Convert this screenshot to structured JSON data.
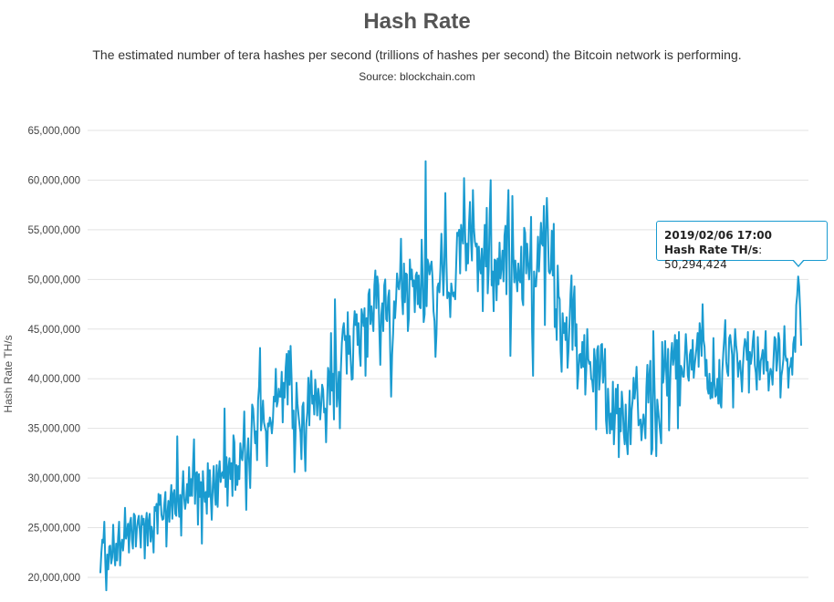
{
  "chart_data": {
    "type": "line",
    "title": "Hash Rate",
    "subtitle": "The estimated number of tera hashes per second (trillions of hashes per second) the Bitcoin network is performing.",
    "source": "Source: blockchain.com",
    "xlabel": "",
    "ylabel": "Hash Rate TH/s",
    "ylim": [
      18000000,
      65000000
    ],
    "yticks": [
      20000000,
      25000000,
      30000000,
      35000000,
      40000000,
      45000000,
      50000000,
      55000000,
      60000000,
      65000000
    ],
    "ytick_labels": [
      "20,000,000",
      "25,000,000",
      "30,000,000",
      "35,000,000",
      "40,000,000",
      "45,000,000",
      "50,000,000",
      "55,000,000",
      "60,000,000",
      "65,000,000"
    ],
    "grid": true,
    "series": [
      {
        "color": "#1a9bd0",
        "values": [
          20500000,
          22500000,
          23800000,
          23500000,
          25600000,
          21500000,
          18700000,
          22300000,
          20800000,
          23100000,
          23200000,
          21400000,
          22000000,
          25300000,
          22600000,
          21200000,
          23400000,
          21700000,
          24000000,
          25600000,
          21200000,
          23300000,
          23800000,
          22700000,
          23900000,
          27000000,
          23900000,
          24500000,
          25400000,
          22500000,
          25500000,
          26000000,
          23800000,
          22900000,
          26400000,
          26200000,
          23100000,
          24800000,
          25700000,
          26200000,
          24700000,
          23000000,
          26200000,
          25300000,
          25900000,
          21900000,
          25400000,
          26500000,
          23200000,
          25700000,
          26400000,
          23600000,
          25100000,
          24400000,
          22500000,
          27100000,
          26700000,
          27400000,
          24400000,
          28400000,
          27300000,
          28300000,
          26300000,
          25800000,
          25900000,
          27500000,
          28600000,
          23100000,
          26400000,
          27700000,
          25600000,
          27800000,
          29300000,
          25900000,
          28400000,
          28800000,
          26400000,
          26200000,
          34200000,
          27700000,
          26100000,
          28300000,
          24200000,
          28500000,
          30700000,
          28000000,
          26900000,
          27800000,
          29400000,
          27500000,
          31100000,
          28200000,
          29900000,
          28200000,
          31300000,
          33900000,
          27400000,
          30500000,
          30600000,
          25300000,
          30400000,
          28100000,
          29600000,
          23400000,
          30700000,
          28600000,
          27600000,
          28600000,
          26400000,
          31500000,
          28100000,
          30800000,
          28100000,
          25800000,
          29100000,
          31200000,
          28600000,
          27300000,
          31300000,
          27100000,
          30400000,
          31700000,
          29600000,
          30400000,
          30600000,
          30000000,
          37000000,
          29100000,
          32100000,
          27200000,
          31100000,
          32000000,
          29900000,
          31500000,
          28200000,
          34300000,
          33600000,
          28800000,
          31300000,
          29300000,
          31200000,
          29900000,
          33500000,
          32200000,
          31800000,
          33500000,
          36700000,
          31600000,
          26800000,
          32300000,
          34000000,
          31500000,
          29000000,
          33500000,
          37400000,
          37000000,
          35300000,
          33500000,
          34700000,
          31800000,
          37800000,
          39200000,
          43100000,
          34800000,
          36000000,
          37800000,
          35600000,
          35100000,
          34700000,
          31200000,
          35500000,
          35200000,
          36100000,
          35600000,
          34500000,
          35700000,
          38200000,
          37700000,
          41000000,
          37200000,
          37700000,
          39000000,
          38200000,
          38200000,
          40700000,
          35600000,
          39600000,
          38100000,
          41100000,
          42500000,
          37400000,
          42800000,
          39400000,
          43300000,
          40100000,
          35000000,
          36800000,
          30600000,
          34300000,
          39600000,
          37500000,
          36400000,
          35400000,
          34600000,
          31900000,
          37200000,
          37600000,
          33600000,
          30700000,
          35500000,
          36700000,
          40100000,
          35300000,
          39300000,
          40800000,
          37500000,
          38300000,
          36400000,
          39900000,
          38500000,
          36300000,
          39000000,
          38200000,
          35900000,
          37300000,
          39400000,
          38900000,
          36600000,
          37000000,
          33600000,
          37400000,
          41100000,
          40500000,
          37400000,
          44600000,
          38800000,
          40500000,
          35900000,
          48000000,
          42400000,
          37200000,
          38600000,
          40700000,
          35000000,
          40900000,
          43600000,
          45000000,
          45600000,
          43900000,
          44300000,
          40500000,
          46700000,
          42500000,
          44300000,
          41900000,
          39900000,
          40000000,
          45100000,
          46800000,
          45400000,
          46500000,
          43400000,
          45600000,
          42600000,
          41300000,
          47000000,
          46300000,
          45300000,
          47100000,
          40300000,
          46100000,
          42200000,
          48500000,
          49000000,
          45500000,
          47300000,
          46000000,
          44800000,
          49400000,
          50900000,
          47100000,
          50300000,
          49400000,
          45000000,
          41400000,
          46400000,
          47600000,
          44800000,
          49400000,
          50000000,
          46000000,
          45800000,
          48200000,
          48900000,
          43100000,
          38200000,
          42400000,
          44500000,
          47800000,
          46100000,
          47900000,
          50600000,
          49400000,
          49000000,
          50200000,
          54100000,
          48200000,
          46500000,
          51600000,
          47700000,
          50600000,
          50500000,
          44800000,
          46100000,
          52000000,
          50000000,
          51000000,
          49300000,
          49900000,
          46700000,
          50400000,
          50700000,
          47500000,
          50400000,
          47200000,
          47100000,
          54000000,
          50200000,
          45700000,
          46500000,
          61900000,
          47300000,
          52000000,
          51500000,
          50500000,
          51300000,
          51800000,
          50100000,
          46800000,
          45800000,
          42200000,
          44500000,
          49200000,
          49600000,
          48700000,
          51100000,
          54600000,
          51600000,
          48400000,
          51500000,
          58700000,
          52200000,
          48100000,
          48700000,
          48600000,
          46200000,
          49600000,
          48800000,
          48300000,
          48700000,
          48000000,
          51500000,
          54700000,
          54400000,
          55000000,
          50600000,
          55500000,
          54300000,
          53600000,
          60200000,
          55000000,
          50900000,
          53600000,
          51600000,
          55600000,
          57800000,
          54000000,
          51900000,
          59000000,
          55200000,
          53800000,
          53300000,
          53600000,
          48800000,
          53300000,
          51200000,
          50600000,
          53100000,
          46800000,
          52300000,
          55500000,
          51300000,
          57200000,
          48600000,
          51000000,
          56500000,
          60000000,
          49400000,
          50800000,
          46800000,
          52000000,
          51900000,
          47900000,
          52100000,
          49500000,
          53700000,
          50100000,
          51300000,
          52900000,
          49800000,
          54400000,
          55400000,
          48500000,
          55900000,
          59000000,
          51600000,
          42300000,
          47800000,
          58400000,
          52400000,
          49700000,
          51900000,
          50200000,
          48800000,
          51600000,
          50000000,
          49700000,
          53300000,
          48000000,
          47400000,
          55200000,
          54700000,
          50600000,
          53600000,
          51600000,
          50000000,
          51900000,
          56300000,
          44800000,
          40300000,
          50800000,
          49300000,
          49300000,
          51100000,
          54300000,
          50800000,
          53300000,
          55700000,
          53600000,
          53400000,
          57400000,
          45400000,
          54700000,
          58200000,
          55200000,
          50800000,
          50600000,
          51000000,
          54900000,
          50400000,
          55600000,
          45200000,
          47000000,
          43900000,
          51400000,
          48300000,
          48000000,
          42800000,
          40700000,
          46600000,
          44600000,
          45600000,
          43900000,
          46200000,
          41100000,
          42900000,
          45600000,
          48500000,
          50400000,
          42900000,
          47700000,
          49300000,
          43300000,
          45500000,
          39000000,
          40500000,
          42400000,
          42500000,
          41100000,
          43700000,
          41200000,
          44400000,
          38400000,
          40900000,
          45000000,
          42000000,
          41500000,
          41700000,
          40000000,
          39800000,
          38700000,
          43000000,
          41800000,
          34900000,
          42900000,
          43300000,
          38900000,
          40200000,
          43400000,
          43500000,
          39600000,
          41000000,
          43000000,
          35800000,
          34500000,
          39000000,
          36900000,
          34500000,
          36500000,
          34900000,
          39700000,
          33400000,
          35900000,
          39000000,
          36500000,
          39400000,
          32100000,
          37000000,
          34700000,
          38700000,
          37300000,
          34600000,
          33400000,
          37400000,
          33700000,
          32400000,
          35600000,
          38800000,
          33400000,
          36800000,
          37800000,
          40100000,
          38000000,
          39200000,
          41200000,
          38300000,
          35300000,
          35700000,
          35900000,
          33800000,
          35300000,
          36400000,
          35500000,
          34000000,
          39100000,
          41400000,
          37600000,
          40300000,
          41800000,
          32400000,
          32900000,
          44800000,
          40200000,
          36000000,
          32200000,
          37900000,
          36800000,
          35700000,
          34600000,
          33500000,
          43700000,
          39600000,
          40900000,
          43800000,
          41100000,
          38300000,
          43000000,
          34800000,
          39300000,
          42500000,
          43600000,
          41400000,
          42300000,
          44400000,
          40000000,
          43900000,
          35000000,
          44700000,
          37300000,
          41300000,
          41000000,
          40200000,
          40200000,
          42200000,
          44500000,
          42700000,
          40300000,
          39800000,
          42400000,
          42900000,
          40900000,
          43900000,
          40100000,
          41400000,
          42300000,
          43300000,
          44600000,
          41200000,
          45600000,
          44400000,
          42300000,
          47500000,
          43900000,
          43200000,
          40300000,
          41900000,
          39000000,
          38500000,
          40500000,
          38000000,
          39600000,
          38100000,
          44100000,
          39500000,
          38200000,
          38400000,
          40000000,
          37500000,
          41900000,
          37500000,
          37100000,
          40700000,
          42600000,
          44100000,
          45900000,
          41700000,
          40700000,
          40300000,
          44100000,
          44400000,
          43400000,
          42400000,
          37100000,
          42700000,
          45000000,
          43400000,
          42500000,
          40200000,
          41500000,
          41800000,
          40400000,
          38700000,
          41400000,
          43100000,
          44000000,
          43500000,
          41900000,
          44700000,
          38600000,
          42700000,
          41500000,
          42300000,
          43800000,
          44800000,
          41400000,
          40600000,
          38900000,
          44200000,
          41800000,
          39900000,
          41800000,
          42200000,
          42900000,
          40500000,
          42500000,
          44800000,
          40800000,
          41700000,
          38800000,
          40300000,
          41000000,
          40600000,
          39400000,
          42000000,
          44200000,
          44000000,
          40800000,
          41900000,
          44600000,
          43900000,
          38100000,
          40300000,
          41000000,
          42000000,
          45300000,
          42400000,
          41800000,
          42000000,
          39100000,
          41000000,
          41300000,
          42100000,
          40400000,
          43500000,
          44200000,
          42700000,
          47400000,
          48400000,
          50300000,
          49300000,
          46800000,
          43400000
        ]
      }
    ]
  },
  "tooltip": {
    "date": "2019/02/06 17:00",
    "series_label": "Hash Rate TH/s",
    "value_text": "50,294,424"
  }
}
